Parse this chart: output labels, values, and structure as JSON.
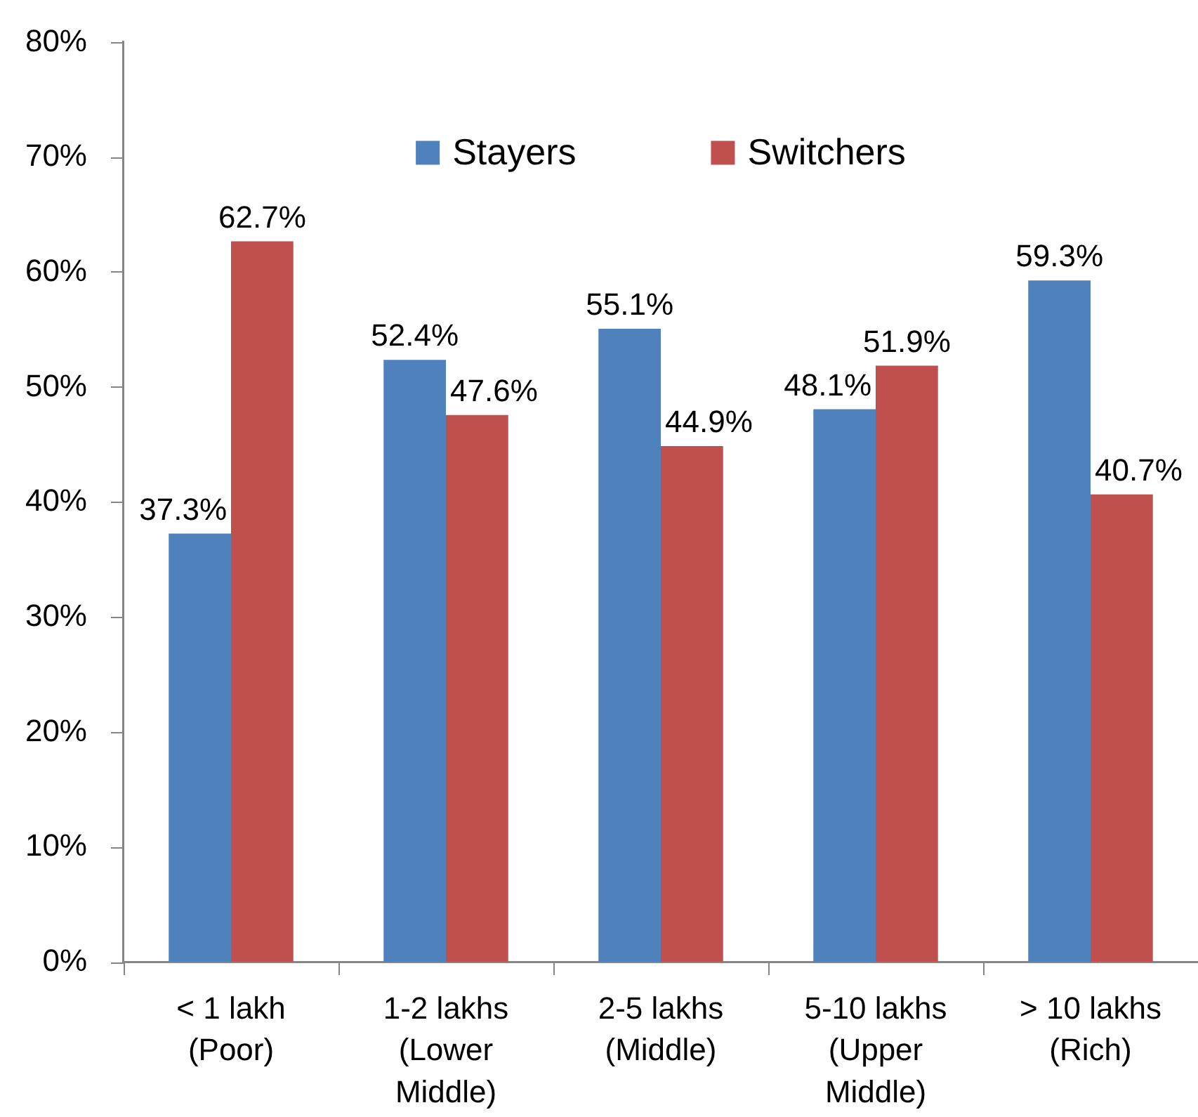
{
  "chart_data": {
    "type": "bar",
    "categories": [
      "< 1 lakh (Poor)",
      "1-2 lakhs (Lower Middle)",
      "2-5 lakhs (Middle)",
      "5-10 lakhs (Upper Middle)",
      "> 10 lakhs (Rich)"
    ],
    "series": [
      {
        "name": "Stayers",
        "color": "#4f81bd",
        "values": [
          37.3,
          52.4,
          55.1,
          48.1,
          59.3
        ],
        "value_labels": [
          "37.3%",
          "52.4%",
          "55.1%",
          "48.1%",
          "59.3%"
        ]
      },
      {
        "name": "Switchers",
        "color": "#c0504d",
        "values": [
          62.7,
          47.6,
          44.9,
          51.9,
          40.7
        ],
        "value_labels": [
          "62.7%",
          "47.6%",
          "44.9%",
          "51.9%",
          "40.7%"
        ]
      }
    ],
    "ylim": [
      0,
      80
    ],
    "yticks": [
      {
        "value": 0,
        "label": "0%"
      },
      {
        "value": 10,
        "label": "10%"
      },
      {
        "value": 20,
        "label": "20%"
      },
      {
        "value": 30,
        "label": "30%"
      },
      {
        "value": 40,
        "label": "40%"
      },
      {
        "value": 50,
        "label": "50%"
      },
      {
        "value": 60,
        "label": "60%"
      },
      {
        "value": 70,
        "label": "70%"
      },
      {
        "value": 80,
        "label": "80%"
      }
    ],
    "grid": false,
    "legend": "top"
  }
}
